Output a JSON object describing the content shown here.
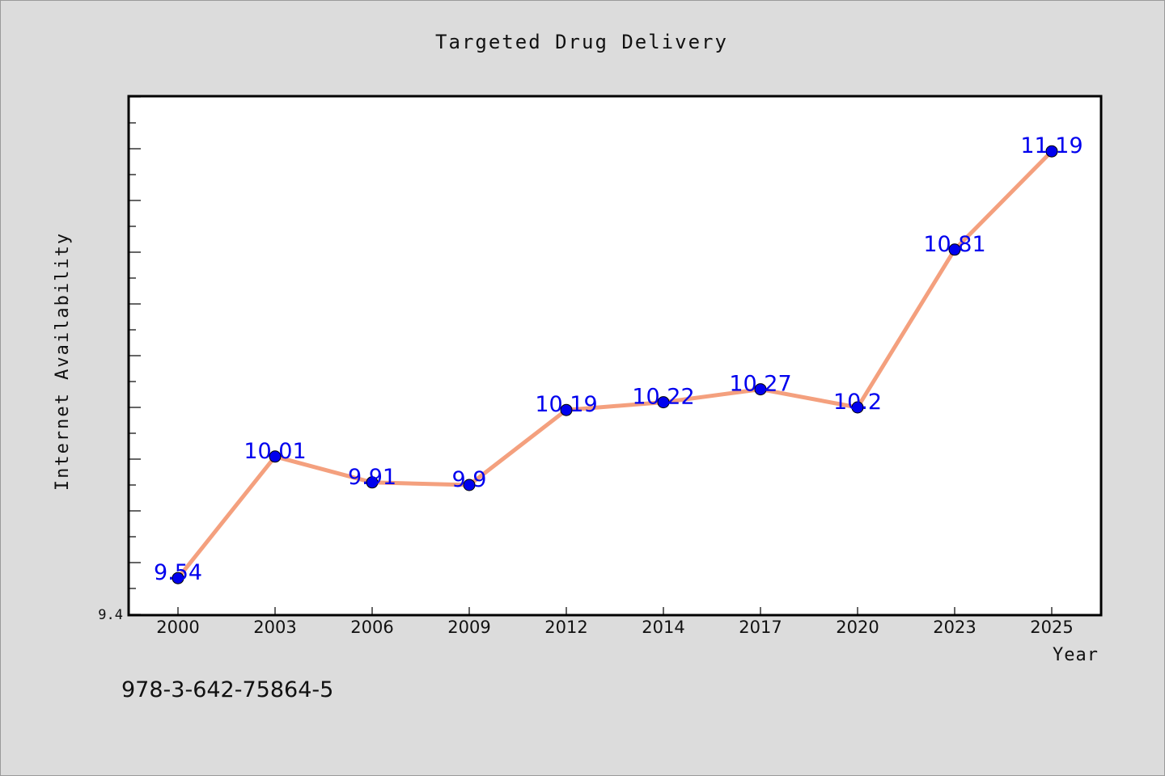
{
  "chart_data": {
    "type": "line",
    "title": "Targeted Drug Delivery",
    "xlabel": "Year",
    "ylabel": "Internet Availability",
    "categories": [
      "2000",
      "2003",
      "2006",
      "2009",
      "2012",
      "2014",
      "2017",
      "2020",
      "2023",
      "2025"
    ],
    "series": [
      {
        "values": [
          9.54,
          10.01,
          9.91,
          9.9,
          10.19,
          10.22,
          10.27,
          10.2,
          10.81,
          11.19
        ],
        "labels": [
          "9.54",
          "10.01",
          "9.91",
          "9.9",
          "10.19",
          "10.22",
          "10.27",
          "10.2",
          "10.81",
          "11.19"
        ]
      }
    ],
    "ylim": [
      9.4,
      11.4
    ],
    "ytick_labels": [
      "9.4"
    ],
    "grid": false,
    "line_color": "#f4a07e",
    "marker_color": "#0000ee",
    "label_color": "#0000ee"
  },
  "footer": {
    "isbn": "978-3-642-75864-5"
  }
}
